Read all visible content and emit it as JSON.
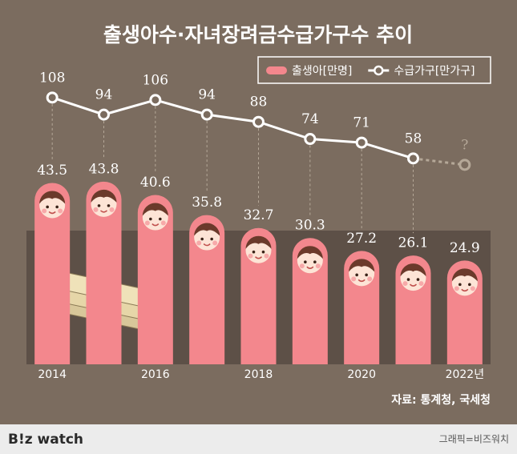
{
  "chart_data": {
    "type": "bar",
    "title": "출생아수·자녀장려금수급가구수 추이",
    "categories": [
      "2014",
      null,
      "2016",
      null,
      "2018",
      null,
      "2020",
      null,
      "2022년"
    ],
    "series": [
      {
        "name": "출생아[만명]",
        "color": "#f3878d",
        "values": [
          43.5,
          43.8,
          40.6,
          35.8,
          32.7,
          30.3,
          27.2,
          26.1,
          24.9
        ]
      },
      {
        "name": "수급가구[만가구]",
        "type": "line",
        "axis": "y2",
        "color": "#ffffff",
        "values": [
          108,
          94,
          106,
          94,
          88,
          74,
          71,
          58,
          null
        ]
      }
    ],
    "ylim": [
      0,
      48
    ],
    "y2lim": [
      0,
      150
    ],
    "annotations": [
      "?"
    ],
    "source": "자료: 통계청, 국세청"
  },
  "footer": {
    "brand": "B!z watch",
    "credit": "그래픽=비즈워치"
  }
}
